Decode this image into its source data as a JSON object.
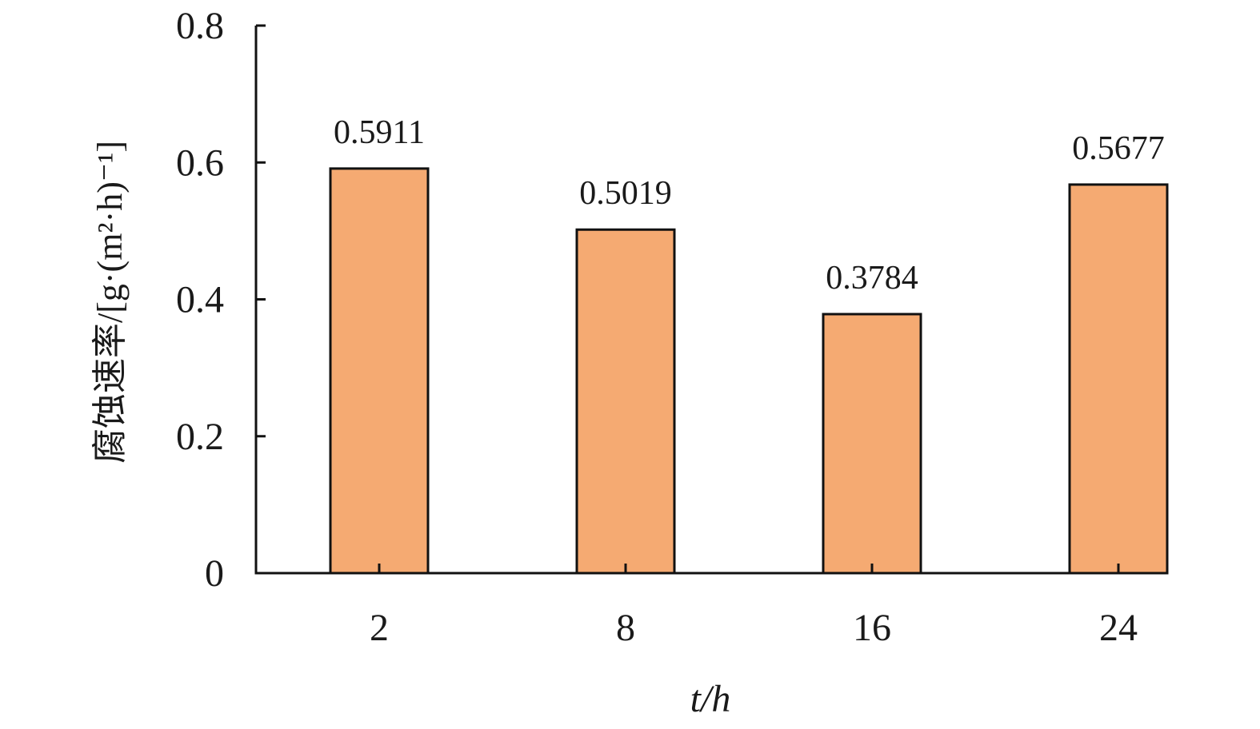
{
  "chart_data": {
    "type": "bar",
    "x_label": "t/h",
    "y_label": "腐蚀速率/[g·(m²·h)⁻¹]",
    "categories": [
      "2",
      "8",
      "16",
      "24"
    ],
    "values": [
      0.5911,
      0.5019,
      0.3784,
      0.5677
    ],
    "color": "#f5aa72",
    "ylim": [
      0,
      0.8
    ],
    "yticks": [
      0,
      0.2,
      0.4,
      0.6,
      0.8
    ],
    "grid": false
  }
}
